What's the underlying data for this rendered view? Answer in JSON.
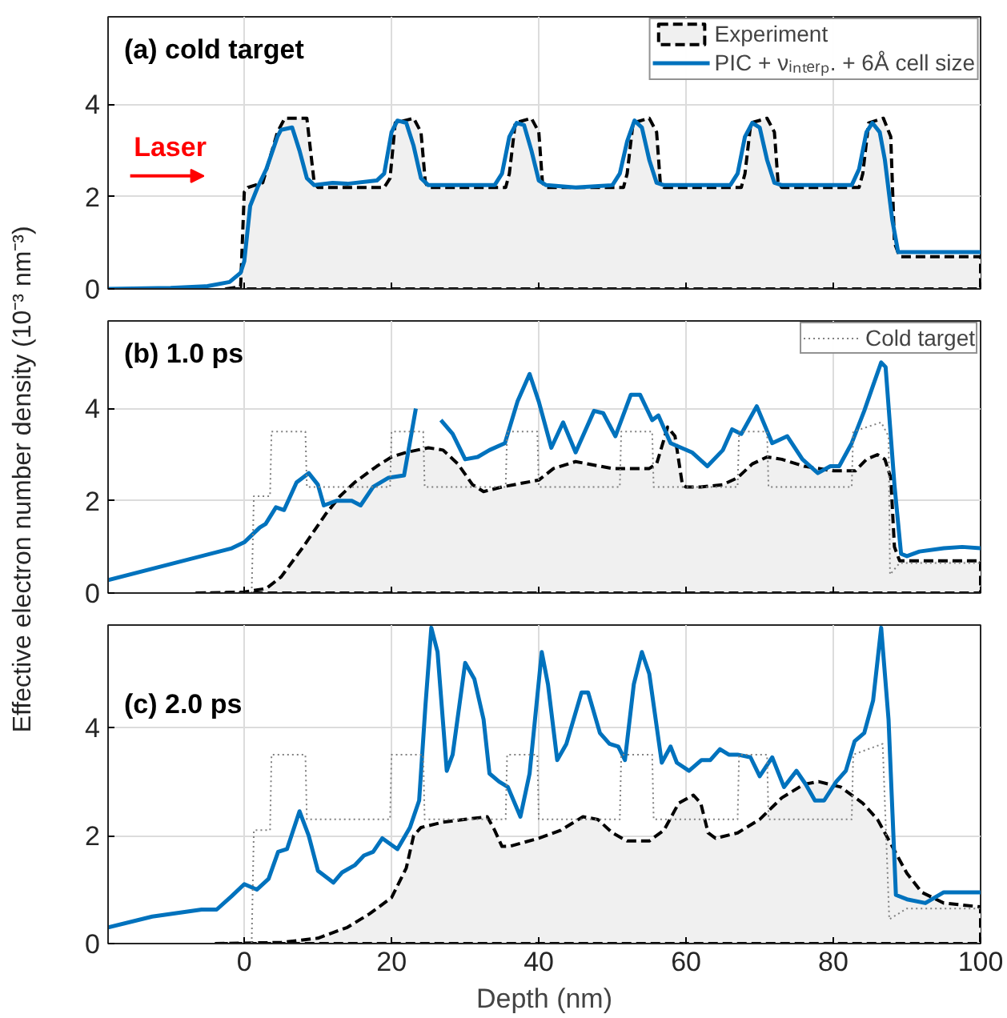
{
  "chart_data": [
    {
      "type": "line",
      "title": "(a) cold target",
      "annotations": [
        "Laser"
      ],
      "xlim": [
        -18.5,
        100
      ],
      "ylim": [
        0,
        5.9
      ],
      "xticks": [
        0,
        20,
        40,
        60,
        80,
        100
      ],
      "yticks": [
        0,
        2,
        4
      ],
      "grid": true,
      "legend": "top right",
      "tick_labels": "y",
      "series": [
        {
          "name": "Experiment",
          "type": "area",
          "color": "#000000",
          "line_style": "dashed",
          "x": [
            -2.5,
            -0.5,
            0,
            0.5,
            2.5,
            4.5,
            5.5,
            8.5,
            9.5,
            10,
            19,
            19.8,
            20.5,
            23,
            24,
            24.6,
            25,
            35.5,
            36,
            36.8,
            39,
            40,
            40.5,
            41,
            51.5,
            52,
            52.8,
            55,
            56,
            56.5,
            57,
            67.5,
            68,
            68.8,
            71,
            72,
            72.5,
            73,
            83.5,
            84,
            84.8,
            86.8,
            87.8,
            88.3,
            89,
            100
          ],
          "values": [
            0,
            0.05,
            2.1,
            2.2,
            2.3,
            3.4,
            3.7,
            3.7,
            2.3,
            2.2,
            2.2,
            2.4,
            3.6,
            3.7,
            3.4,
            2.3,
            2.2,
            2.2,
            2.5,
            3.6,
            3.7,
            3.4,
            2.3,
            2.2,
            2.2,
            2.5,
            3.6,
            3.7,
            3.4,
            2.3,
            2.2,
            2.2,
            2.5,
            3.6,
            3.7,
            3.4,
            2.3,
            2.2,
            2.2,
            2.5,
            3.6,
            3.7,
            3.3,
            1,
            0.7,
            0.7
          ]
        },
        {
          "name": "PIC + νᵢₙₜₑᵣₚ. + 6Å cell size",
          "color": "#0072bd",
          "line_style": "solid",
          "x": [
            -18.5,
            -10,
            -5,
            -2,
            -0.5,
            0,
            0.8,
            1.8,
            3,
            4.5,
            5,
            6.5,
            7.5,
            8.5,
            9.5,
            12,
            14,
            18,
            19,
            20,
            20.8,
            22,
            23,
            24,
            25,
            34,
            35,
            36,
            37,
            38,
            39,
            40,
            41,
            45,
            50,
            51,
            52,
            53,
            54,
            55,
            56,
            57,
            66,
            67,
            68,
            69,
            70,
            71,
            72,
            73,
            82.5,
            83.5,
            84.5,
            85.3,
            86.3,
            87,
            88,
            88.8,
            100
          ],
          "values": [
            0,
            0.02,
            0.06,
            0.15,
            0.35,
            0.6,
            1.8,
            2.2,
            2.6,
            3.3,
            3.45,
            3.5,
            3.0,
            2.4,
            2.25,
            2.3,
            2.28,
            2.35,
            2.5,
            3.4,
            3.65,
            3.6,
            3.1,
            2.4,
            2.25,
            2.25,
            2.5,
            3.3,
            3.6,
            3.55,
            3.0,
            2.35,
            2.25,
            2.2,
            2.25,
            2.5,
            3.2,
            3.65,
            3.5,
            2.8,
            2.3,
            2.25,
            2.25,
            2.5,
            3.3,
            3.6,
            3.5,
            2.8,
            2.3,
            2.25,
            2.25,
            2.6,
            3.4,
            3.6,
            3.4,
            2.8,
            1.5,
            0.8,
            0.8
          ]
        }
      ]
    },
    {
      "type": "line",
      "title": "(b) 1.0 ps",
      "ylabel": "Effective electron number density (10⁻³ nm⁻³)",
      "xlim": [
        -18.5,
        100
      ],
      "ylim": [
        0,
        5.9
      ],
      "xticks": [
        0,
        20,
        40,
        60,
        80,
        100
      ],
      "yticks": [
        0,
        2,
        4
      ],
      "grid": true,
      "legend": "top right",
      "tick_labels": "y",
      "series": [
        {
          "type": "area",
          "color": "#000000",
          "line_style": "dashed",
          "x": [
            -6.5,
            0,
            3,
            5,
            8,
            11,
            13,
            15,
            18,
            20,
            22,
            25,
            27,
            29,
            31,
            32.5,
            35,
            40,
            42,
            45,
            50,
            55,
            56,
            57.5,
            58.5,
            59.5,
            60,
            62,
            65,
            67,
            69,
            71,
            73,
            76,
            80,
            83,
            84.5,
            86,
            87,
            87.8,
            88.3,
            89,
            100
          ],
          "values": [
            0,
            0.02,
            0.1,
            0.35,
            1.0,
            1.7,
            2.1,
            2.4,
            2.75,
            2.95,
            3.05,
            3.15,
            3.1,
            2.8,
            2.35,
            2.2,
            2.3,
            2.45,
            2.7,
            2.85,
            2.7,
            2.7,
            2.8,
            3.6,
            3.4,
            2.35,
            2.3,
            2.3,
            2.35,
            2.5,
            2.8,
            2.95,
            2.9,
            2.75,
            2.65,
            2.65,
            2.9,
            3.0,
            2.9,
            2.5,
            1.0,
            0.7,
            0.7
          ]
        },
        {
          "color": "#0072bd",
          "line_style": "solid",
          "x": [
            -18.5,
            -1.7,
            0,
            2.1,
            2.9,
            4.3,
            5.4,
            7.1,
            8.75,
            10,
            10.8,
            12.5,
            14.6,
            15.8,
            17.5,
            19.6,
            21.7,
            23.3,
            24.6,
            25.8,
            26.7,
            28.3,
            30,
            31.7,
            33.3,
            35.4,
            37.1,
            38.75,
            40,
            41.7,
            43.3,
            45,
            47.5,
            48.75,
            50.4,
            52.5,
            53.75,
            55.4,
            56.25,
            57.9,
            60.8,
            62.9,
            65,
            66.25,
            67.5,
            69.6,
            71.7,
            73.75,
            75.8,
            77.9,
            79.6,
            80.8,
            82.5,
            84.2,
            85.4,
            86.5,
            87.1,
            88.3,
            89.2,
            90,
            91.7,
            95,
            97.5,
            100
          ],
          "values": [
            0.28,
            0.97,
            1.1,
            1.42,
            1.5,
            1.86,
            1.8,
            2.4,
            2.6,
            2.35,
            1.9,
            2.0,
            2.0,
            1.9,
            2.3,
            2.5,
            2.55,
            4.0,
            null,
            null,
            3.75,
            3.45,
            2.9,
            2.95,
            3.1,
            3.25,
            4.15,
            4.75,
            4.15,
            3.15,
            3.7,
            3.05,
            3.95,
            3.9,
            3.4,
            4.3,
            4.3,
            3.75,
            3.85,
            3.25,
            3.05,
            2.75,
            3.1,
            3.55,
            3.45,
            4.05,
            3.25,
            3.4,
            2.9,
            2.6,
            2.75,
            2.75,
            3.25,
            3.95,
            4.5,
            5.0,
            4.9,
            2.35,
            0.85,
            0.8,
            0.9,
            0.97,
            1.0,
            0.97
          ]
        },
        {
          "name": "Cold target",
          "color": "#808080",
          "line_style": "dotted",
          "x": [
            1,
            1.3,
            3.5,
            3.7,
            8.3,
            8.5,
            19.8,
            20,
            24.3,
            24.5,
            35.5,
            35.7,
            39.8,
            40,
            51,
            51.2,
            55.4,
            55.6,
            67,
            67.2,
            71,
            71.2,
            82.5,
            82.7,
            86.5,
            87.5,
            87.7,
            89,
            100
          ],
          "values": [
            0,
            2.1,
            2.1,
            3.5,
            3.5,
            2.3,
            2.3,
            3.5,
            3.5,
            2.3,
            2.3,
            3.5,
            3.5,
            2.3,
            2.3,
            3.5,
            3.5,
            2.3,
            2.3,
            3.5,
            3.5,
            2.3,
            2.3,
            3.5,
            3.7,
            3.4,
            0.4,
            0.65,
            0.65
          ]
        }
      ]
    },
    {
      "type": "line",
      "title": "(c) 2.0 ps",
      "xlabel": "Depth (nm)",
      "xlim": [
        -18.5,
        100
      ],
      "ylim": [
        0,
        5.9
      ],
      "xticks": [
        0,
        20,
        40,
        60,
        80,
        100
      ],
      "yticks": [
        0,
        2,
        4
      ],
      "grid": true,
      "series": [
        {
          "type": "area",
          "color": "#000000",
          "line_style": "dashed",
          "x": [
            -4,
            5,
            10,
            14,
            17,
            20,
            22,
            23,
            24,
            27,
            30,
            33,
            34,
            35,
            36,
            40,
            43,
            46,
            48,
            50,
            52,
            55,
            57,
            59,
            61,
            62,
            63,
            64,
            67,
            70,
            73,
            76,
            78,
            81,
            84,
            86,
            88,
            90,
            92,
            95,
            100
          ],
          "values": [
            0,
            0.02,
            0.1,
            0.3,
            0.55,
            0.85,
            1.4,
            2.0,
            2.15,
            2.25,
            2.3,
            2.35,
            2.1,
            1.8,
            1.8,
            1.95,
            2.1,
            2.35,
            2.3,
            2.05,
            1.9,
            1.9,
            2.1,
            2.6,
            2.75,
            2.6,
            2.05,
            1.95,
            2.05,
            2.3,
            2.7,
            2.95,
            3.0,
            2.9,
            2.6,
            2.3,
            1.8,
            1.3,
            0.95,
            0.75,
            0.68
          ]
        },
        {
          "color": "#0072bd",
          "line_style": "solid",
          "x": [
            -18.5,
            -12.5,
            -5.8,
            -3.75,
            -1.7,
            0,
            1.7,
            3.3,
            4.6,
            5.8,
            7.5,
            8.75,
            10,
            12.1,
            13.3,
            15,
            16.25,
            17.5,
            18.75,
            20.8,
            22.5,
            23.75,
            24.6,
            25.4,
            26.25,
            27.5,
            28.3,
            30,
            31.25,
            32.5,
            33.3,
            34.6,
            35.8,
            37.5,
            38.75,
            40.4,
            41.25,
            42.5,
            43.75,
            45.8,
            46.7,
            48.3,
            49.6,
            50.8,
            51.7,
            52.9,
            54,
            55,
            56.7,
            57.9,
            58.75,
            60.4,
            62.1,
            63.3,
            64.6,
            65.8,
            67,
            68.75,
            70,
            71.7,
            73.3,
            75,
            76.25,
            77.5,
            78.75,
            80.4,
            81.7,
            82.9,
            84.2,
            85.4,
            86.5,
            87.5,
            88.5,
            90,
            92.5,
            95,
            97.5,
            100
          ],
          "values": [
            0.3,
            0.5,
            0.63,
            0.63,
            0.88,
            1.1,
            1.0,
            1.2,
            1.7,
            1.75,
            2.45,
            2.0,
            1.35,
            1.13,
            1.32,
            1.45,
            1.63,
            1.7,
            1.95,
            1.75,
            2.15,
            2.65,
            4.4,
            5.85,
            5.4,
            3.2,
            3.5,
            5.2,
            4.9,
            4.15,
            3.15,
            3.0,
            2.9,
            2.35,
            3.15,
            5.4,
            4.8,
            3.4,
            3.7,
            4.65,
            4.65,
            3.9,
            3.7,
            3.65,
            3.4,
            4.8,
            5.4,
            5.0,
            3.35,
            3.65,
            3.35,
            3.2,
            3.4,
            3.4,
            3.6,
            3.5,
            3.5,
            3.45,
            3.1,
            3.45,
            2.9,
            3.2,
            2.95,
            2.65,
            2.65,
            3.0,
            3.2,
            3.75,
            3.9,
            4.5,
            5.85,
            4.15,
            0.9,
            0.82,
            0.75,
            0.95,
            0.95,
            0.95
          ]
        },
        {
          "color": "#808080",
          "line_style": "dotted",
          "x": [
            1,
            1.3,
            3.5,
            3.7,
            8.3,
            8.5,
            19.8,
            20,
            24.3,
            24.5,
            35.5,
            35.7,
            39.8,
            40,
            51,
            51.2,
            55.4,
            55.6,
            67,
            67.2,
            71,
            71.2,
            82.5,
            82.7,
            86.7,
            87.6,
            90,
            100
          ],
          "values": [
            0,
            2.1,
            2.1,
            3.5,
            3.5,
            2.3,
            2.3,
            3.5,
            3.5,
            2.3,
            2.3,
            3.5,
            3.5,
            2.3,
            2.3,
            3.5,
            3.5,
            2.3,
            2.3,
            3.5,
            3.5,
            2.3,
            2.3,
            3.5,
            3.7,
            0.45,
            0.65,
            0.65
          ]
        }
      ]
    }
  ]
}
